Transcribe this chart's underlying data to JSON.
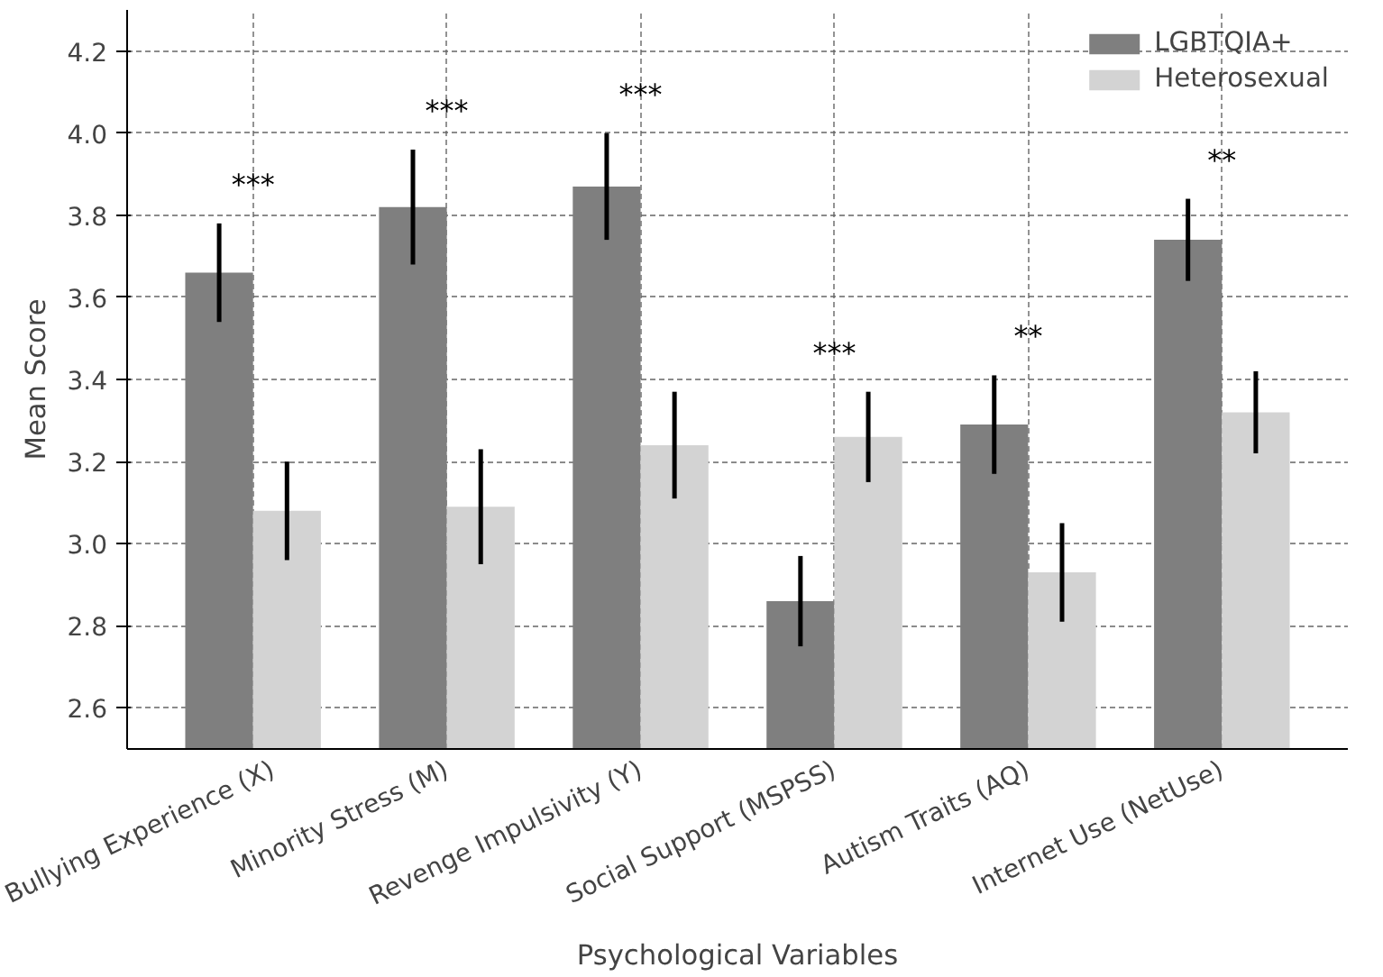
{
  "chart_data": {
    "type": "bar",
    "xlabel": "Psychological Variables",
    "ylabel": "Mean Score",
    "categories": [
      "Bullying Experience (X)",
      "Minority Stress (M)",
      "Revenge Impulsivity (Y)",
      "Social Support (MSPSS)",
      "Autism Traits (AQ)",
      "Internet Use (NetUse)"
    ],
    "series": [
      {
        "name": "LGBTQIA+",
        "color": "#7f7f7f",
        "values": [
          3.66,
          3.82,
          3.87,
          2.86,
          3.29,
          3.74
        ],
        "errors": [
          0.12,
          0.14,
          0.13,
          0.11,
          0.12,
          0.1
        ]
      },
      {
        "name": "Heterosexual",
        "color": "#d3d3d3",
        "values": [
          3.08,
          3.09,
          3.24,
          3.26,
          2.93,
          3.32
        ],
        "errors": [
          0.12,
          0.14,
          0.13,
          0.11,
          0.12,
          0.1
        ]
      }
    ],
    "ylim": [
      2.5,
      4.3
    ],
    "yticks": [
      2.6,
      2.8,
      {
        "value": 3.0,
        "label": "3.0"
      },
      3.2,
      3.4,
      3.6,
      3.8,
      {
        "value": 4.0,
        "label": "4.0"
      },
      4.2
    ],
    "grid": true,
    "legend": "top right",
    "annotations": [
      "***",
      "***",
      "***",
      "***",
      "**",
      "**"
    ]
  }
}
